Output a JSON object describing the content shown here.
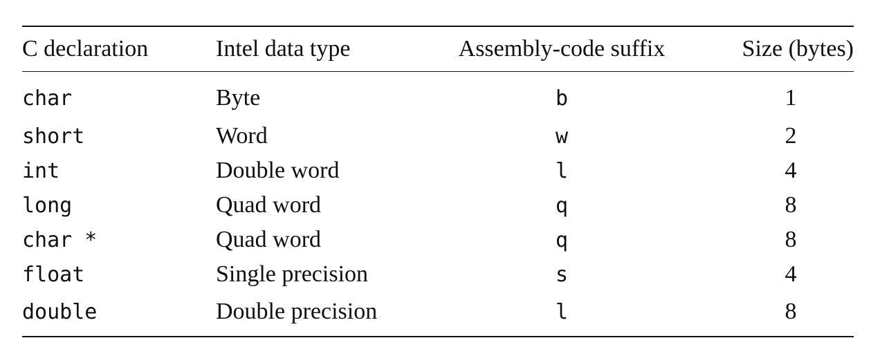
{
  "table": {
    "headers": [
      "C declaration",
      "Intel data type",
      "Assembly-code suffix",
      "Size (bytes)"
    ],
    "rows": [
      {
        "c_decl": "char",
        "intel_type": "Byte",
        "suffix": "b",
        "size": "1"
      },
      {
        "c_decl": "short",
        "intel_type": "Word",
        "suffix": "w",
        "size": "2"
      },
      {
        "c_decl": "int",
        "intel_type": "Double word",
        "suffix": "l",
        "size": "4"
      },
      {
        "c_decl": "long",
        "intel_type": "Quad word",
        "suffix": "q",
        "size": "8"
      },
      {
        "c_decl": "char *",
        "intel_type": "Quad word",
        "suffix": "q",
        "size": "8"
      },
      {
        "c_decl": "float",
        "intel_type": "Single precision",
        "suffix": "s",
        "size": "4"
      },
      {
        "c_decl": "double",
        "intel_type": "Double precision",
        "suffix": "l",
        "size": "8"
      }
    ]
  }
}
